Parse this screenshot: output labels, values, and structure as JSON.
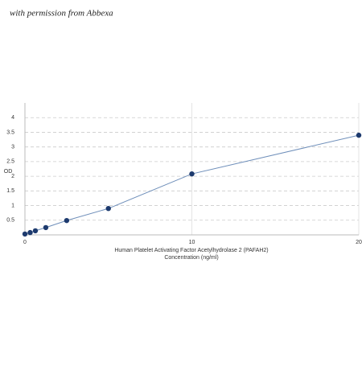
{
  "watermark": "with permission from Abbexa",
  "chart_data": {
    "type": "line",
    "x_label": [
      "Human Platelet Activating Factor Acetylhydrolase 2 (PAFAH2)",
      "Concentration (ng/ml)"
    ],
    "y_label": "OD",
    "x": [
      0,
      0.3125,
      0.625,
      1.25,
      2.5,
      5,
      10,
      20
    ],
    "series": [
      {
        "color": "#1d3a6e",
        "values": [
          0.03,
          0.08,
          0.14,
          0.25,
          0.49,
          0.9,
          2.08,
          3.4
        ]
      }
    ],
    "line_color": "#6f8fba",
    "xlim": [
      0,
      20
    ],
    "xticks": [
      0,
      10,
      20
    ],
    "ylim": [
      0,
      4.5
    ],
    "yticks": [
      0.5,
      1,
      1.5,
      2,
      2.5,
      3,
      3.5,
      4
    ],
    "grid": true
  }
}
